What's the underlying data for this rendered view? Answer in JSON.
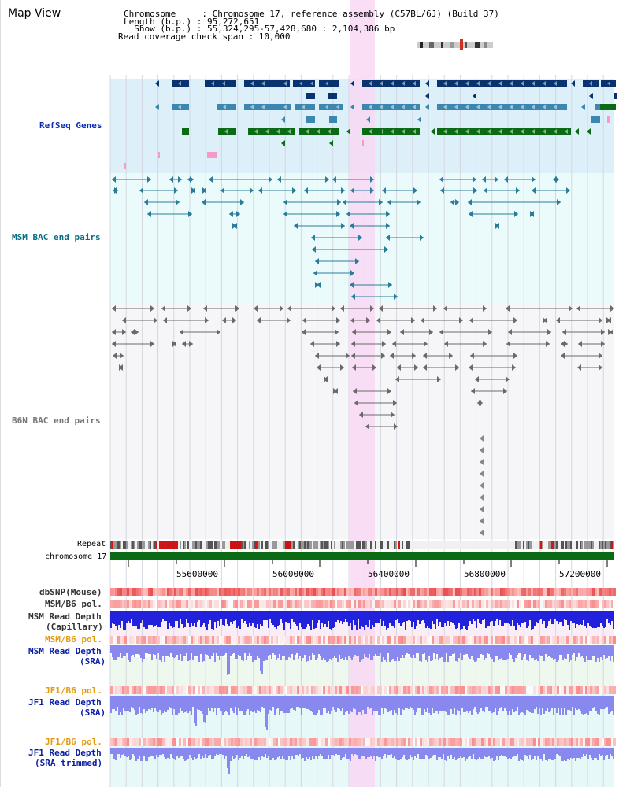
{
  "page": {
    "title": "Map View",
    "header": {
      "chromosome_label": "Chromosome     : Chromosome 17, reference assembly (C57BL/6J) (Build 37)",
      "length_label": "Length (b.p.) : 95,272,651",
      "show_label": "  Show (b.p.) : 55,324,295-57,428,680 : 2,104,386 bp",
      "coverage_label": "Read coverage check span : 10,000"
    }
  },
  "tracks": {
    "refseq": "RefSeq Genes",
    "msm_bac": "MSM BAC end pairs",
    "b6n_bac": "B6N BAC end pairs",
    "repeat": "Repeat",
    "chromosome": "chromosome 17",
    "dbsnp": "dbSNP(Mouse)",
    "msm_b6_pol_1": "MSM/B6 pol.",
    "msm_read_depth_cap_1": "MSM Read Depth",
    "msm_read_depth_cap_2": "(Capillary)",
    "msm_b6_pol_2": "MSM/B6 pol.",
    "msm_read_depth_sra_1": "MSM Read Depth",
    "msm_read_depth_sra_2": "(SRA)",
    "jf1_b6_pol_1": "JF1/B6 pol.",
    "jf1_read_depth_sra_1": "JF1 Read Depth",
    "jf1_read_depth_sra_2": "(SRA)",
    "jf1_b6_pol_2": "JF1/B6 pol.",
    "jf1_read_depth_trim_1": "JF1 Read Depth",
    "jf1_read_depth_trim_2": "(SRA trimmed)"
  },
  "axis": {
    "ticks": [
      "55600000",
      "56000000",
      "56400000",
      "56800000",
      "57200000"
    ]
  },
  "colors": {
    "refseq_dark": "#08336e",
    "refseq_mid": "#3c87b0",
    "refseq_green": "#0a6b14",
    "highlight": "#f8d8f4",
    "chromosome_bar": "#0a6b14",
    "depth_blue": "#2222dd",
    "depth_lavender": "#8888ee"
  }
}
